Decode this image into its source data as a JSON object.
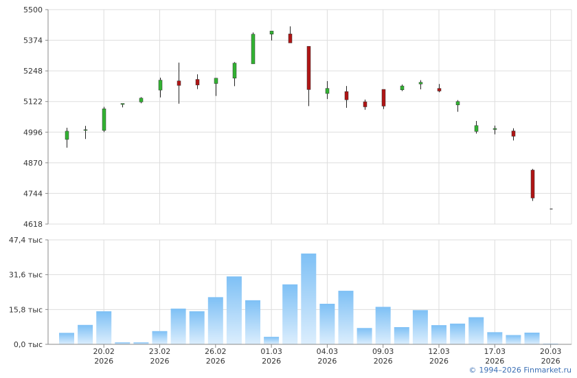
{
  "chart_data": [
    {
      "type": "candlestick",
      "yaxis_ticks": [
        "5500",
        "5374",
        "5248",
        "5122",
        "4996",
        "4870",
        "4744",
        "4618"
      ],
      "ylim": [
        4618,
        5500
      ],
      "grid": true,
      "candles": [
        {
          "open": 4966,
          "high": 5014,
          "low": 4932,
          "close": 5000
        },
        {
          "open": 5003,
          "high": 5022,
          "low": 4968,
          "close": 5006
        },
        {
          "open": 5003,
          "high": 5100,
          "low": 4996,
          "close": 5092
        },
        {
          "open": 5110,
          "high": 5114,
          "low": 5098,
          "close": 5114
        },
        {
          "open": 5120,
          "high": 5140,
          "low": 5115,
          "close": 5136
        },
        {
          "open": 5169,
          "high": 5220,
          "low": 5139,
          "close": 5210
        },
        {
          "open": 5207,
          "high": 5282,
          "low": 5113,
          "close": 5188
        },
        {
          "open": 5213,
          "high": 5234,
          "low": 5173,
          "close": 5190
        },
        {
          "open": 5196,
          "high": 5219,
          "low": 5145,
          "close": 5218
        },
        {
          "open": 5218,
          "high": 5284,
          "low": 5185,
          "close": 5280
        },
        {
          "open": 5277,
          "high": 5406,
          "low": 5277,
          "close": 5399
        },
        {
          "open": 5399,
          "high": 5412,
          "low": 5373,
          "close": 5412
        },
        {
          "open": 5400,
          "high": 5431,
          "low": 5363,
          "close": 5363
        },
        {
          "open": 5349,
          "high": 5349,
          "low": 5103,
          "close": 5171
        },
        {
          "open": 5155,
          "high": 5206,
          "low": 5132,
          "close": 5176
        },
        {
          "open": 5163,
          "high": 5186,
          "low": 5096,
          "close": 5129
        },
        {
          "open": 5121,
          "high": 5130,
          "low": 5088,
          "close": 5100
        },
        {
          "open": 5172,
          "high": 5172,
          "low": 5091,
          "close": 5103
        },
        {
          "open": 5170,
          "high": 5192,
          "low": 5165,
          "close": 5186
        },
        {
          "open": 5194,
          "high": 5210,
          "low": 5172,
          "close": 5201
        },
        {
          "open": 5176,
          "high": 5194,
          "low": 5160,
          "close": 5165
        },
        {
          "open": 5108,
          "high": 5128,
          "low": 5080,
          "close": 5122
        },
        {
          "open": 4999,
          "high": 5042,
          "low": 4990,
          "close": 5023
        },
        {
          "open": 5007,
          "high": 5023,
          "low": 4987,
          "close": 5011
        },
        {
          "open": 5001,
          "high": 5012,
          "low": 4962,
          "close": 4979
        },
        {
          "open": 4840,
          "high": 4845,
          "low": 4713,
          "close": 4725
        },
        {
          "open": 4680,
          "high": 4680,
          "low": 4680,
          "close": 4680
        }
      ]
    },
    {
      "type": "bar",
      "yaxis_ticks": [
        "47,4 тыс",
        "31,6 тыс",
        "15,8 тыс",
        "0,0 тыс"
      ],
      "ylim": [
        0,
        47400
      ],
      "values": [
        5200,
        8800,
        15000,
        900,
        900,
        6000,
        16200,
        15000,
        21400,
        30800,
        20000,
        3400,
        27200,
        41200,
        18400,
        24300,
        7400,
        17000,
        7800,
        15500,
        8700,
        9400,
        12300,
        5500,
        4200,
        5300,
        300
      ]
    }
  ],
  "x_axis": {
    "date_labels": [
      "20.02",
      "23.02",
      "26.02",
      "01.03",
      "04.03",
      "09.03",
      "12.03",
      "17.03",
      "20.03"
    ],
    "year_label": "2026"
  },
  "colors": {
    "up": "#32b232",
    "down": "#b01515",
    "wick": "#222222",
    "grid": "#dddddd",
    "volume_top": "#7ec0f5",
    "volume_bottom": "#dceefd"
  },
  "footer": {
    "copyright": "1994–2026 Finmarket.ru",
    "copyright_icon": "copyright-symbol"
  }
}
